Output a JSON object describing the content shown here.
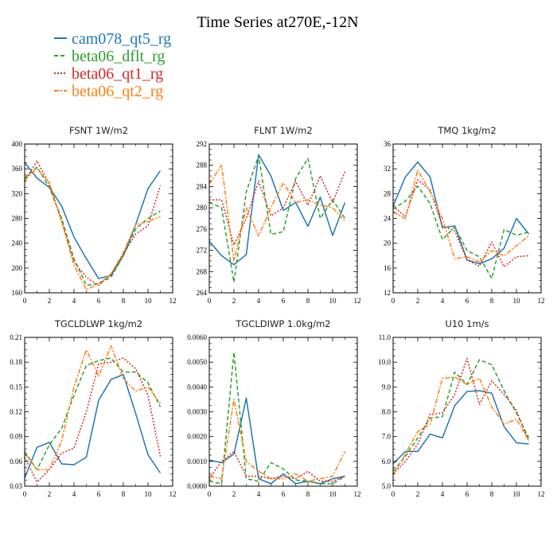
{
  "figure": {
    "title": "Time Series at270E,-12N",
    "legend": [
      {
        "name": "cam078_qt5_rg",
        "color": "#1f77b4"
      },
      {
        "name": "beta06_dflt_rg",
        "color": "#2ca02c"
      },
      {
        "name": "beta06_qt1_rg",
        "color": "#d62728"
      },
      {
        "name": "beta06_qt2_rg",
        "color": "#ff7f0e"
      }
    ]
  },
  "chart_data": [
    {
      "type": "line",
      "title": "FSNT   1W/m2",
      "x": [
        0,
        1,
        2,
        3,
        4,
        5,
        6,
        7,
        8,
        9,
        10,
        11
      ],
      "xlim": [
        0,
        12
      ],
      "xticks": [
        0,
        2,
        4,
        6,
        8,
        10,
        12
      ],
      "xticklabels": [
        "0",
        "2",
        "4",
        "6",
        "8",
        "10",
        "12"
      ],
      "ylim": [
        160,
        400
      ],
      "yticks": [
        160,
        200,
        240,
        280,
        320,
        360,
        400
      ],
      "yticklabels": [
        "160",
        "200",
        "240",
        "280",
        "320",
        "360",
        "400"
      ],
      "series": [
        {
          "name": "cam078_qt5_rg",
          "values": [
            370,
            345,
            330,
            300,
            250,
            215,
            183,
            188,
            220,
            270,
            328,
            357
          ]
        },
        {
          "name": "beta06_dflt_rg",
          "values": [
            345,
            363,
            330,
            280,
            215,
            172,
            175,
            185,
            220,
            263,
            280,
            292
          ]
        },
        {
          "name": "beta06_qt1_rg",
          "values": [
            340,
            373,
            335,
            275,
            210,
            185,
            172,
            190,
            222,
            255,
            268,
            333
          ]
        },
        {
          "name": "beta06_qt2_rg",
          "values": [
            342,
            360,
            338,
            275,
            205,
            165,
            175,
            190,
            225,
            270,
            275,
            283
          ]
        }
      ]
    },
    {
      "type": "line",
      "title": "FLNT   1W/m2",
      "x": [
        0,
        1,
        2,
        3,
        4,
        5,
        6,
        7,
        8,
        9,
        10,
        11
      ],
      "xlim": [
        0,
        12
      ],
      "xticks": [
        0,
        2,
        4,
        6,
        8,
        10,
        12
      ],
      "xticklabels": [
        "0",
        "2",
        "4",
        "6",
        "8",
        "10",
        "12"
      ],
      "ylim": [
        264,
        292
      ],
      "yticks": [
        264,
        268,
        272,
        276,
        280,
        284,
        288,
        292
      ],
      "yticklabels": [
        "264",
        "268",
        "272",
        "276",
        "280",
        "284",
        "288",
        "292"
      ],
      "series": [
        {
          "name": "cam078_qt5_rg",
          "values": [
            273.7,
            271,
            269.3,
            271.2,
            290,
            286,
            279.5,
            281,
            276.5,
            282,
            274.8,
            281
          ]
        },
        {
          "name": "beta06_dflt_rg",
          "values": [
            281,
            280,
            266,
            283,
            289.8,
            275,
            275.5,
            285.5,
            289.3,
            278,
            281.5,
            278
          ]
        },
        {
          "name": "beta06_qt1_rg",
          "values": [
            281.5,
            281.5,
            273,
            278,
            285,
            278.5,
            280,
            285,
            280.5,
            286,
            281,
            286.8
          ]
        },
        {
          "name": "beta06_qt2_rg",
          "values": [
            284.5,
            288,
            270,
            280,
            274.7,
            280,
            284.7,
            281,
            281.5,
            280.5,
            280,
            277.5
          ]
        }
      ]
    },
    {
      "type": "line",
      "title": "TMQ   1kg/m2",
      "x": [
        0,
        1,
        2,
        3,
        4,
        5,
        6,
        7,
        8,
        9,
        10,
        11
      ],
      "xlim": [
        0,
        12
      ],
      "xticks": [
        0,
        2,
        4,
        6,
        8,
        10,
        12
      ],
      "xticklabels": [
        "0",
        "2",
        "4",
        "6",
        "8",
        "10",
        "12"
      ],
      "ylim": [
        12,
        36
      ],
      "yticks": [
        12,
        16,
        20,
        24,
        28,
        32,
        36
      ],
      "yticklabels": [
        "12",
        "16",
        "20",
        "24",
        "28",
        "32",
        "36"
      ],
      "series": [
        {
          "name": "cam078_qt5_rg",
          "values": [
            26,
            30.7,
            33.1,
            30.7,
            22.5,
            22.8,
            17.3,
            16.7,
            17.5,
            19.2,
            24,
            21.5
          ]
        },
        {
          "name": "beta06_dflt_rg",
          "values": [
            25.5,
            26.8,
            29.2,
            26.4,
            20.6,
            22.6,
            18.8,
            17.8,
            14.3,
            22.2,
            21.3,
            21.8
          ]
        },
        {
          "name": "beta06_qt1_rg",
          "values": [
            26,
            24.3,
            30.2,
            28.6,
            22.8,
            22,
            17.3,
            16.3,
            20.2,
            16.2,
            17.8,
            18
          ]
        },
        {
          "name": "beta06_qt2_rg",
          "values": [
            25,
            24,
            31.8,
            28.3,
            24,
            17.5,
            17.8,
            17,
            18.8,
            18,
            19.6,
            21.2
          ]
        }
      ]
    },
    {
      "type": "line",
      "title": "TGCLDLWP   1kg/m2",
      "x": [
        0,
        1,
        2,
        3,
        4,
        5,
        6,
        7,
        8,
        9,
        10,
        11
      ],
      "xlim": [
        0,
        12
      ],
      "xticks": [
        0,
        2,
        4,
        6,
        8,
        10,
        12
      ],
      "xticklabels": [
        "0",
        "2",
        "4",
        "6",
        "8",
        "10",
        "12"
      ],
      "ylim": [
        0.03,
        0.21
      ],
      "yticks": [
        0.03,
        0.06,
        0.09,
        0.12,
        0.15,
        0.18,
        0.21
      ],
      "yticklabels": [
        "0.03",
        "0.06",
        "0.09",
        "0.12",
        "0.15",
        "0.18",
        "0.21"
      ],
      "series": [
        {
          "name": "cam078_qt5_rg",
          "values": [
            0.04,
            0.077,
            0.083,
            0.057,
            0.056,
            0.065,
            0.134,
            0.159,
            0.165,
            0.118,
            0.068,
            0.046
          ]
        },
        {
          "name": "beta06_dflt_rg",
          "values": [
            0.072,
            0.05,
            0.08,
            0.1,
            0.14,
            0.176,
            0.182,
            0.185,
            0.168,
            0.168,
            0.155,
            0.126
          ]
        },
        {
          "name": "beta06_qt1_rg",
          "values": [
            0.065,
            0.035,
            0.05,
            0.07,
            0.076,
            0.12,
            0.178,
            0.18,
            0.185,
            0.172,
            0.14,
            0.066
          ]
        },
        {
          "name": "beta06_qt2_rg",
          "values": [
            0.07,
            0.05,
            0.05,
            0.085,
            0.15,
            0.195,
            0.163,
            0.2,
            0.16,
            0.145,
            0.15,
            0.13
          ]
        }
      ]
    },
    {
      "type": "line",
      "title": "TGCLDIWP   1.0kg/m2",
      "x": [
        0,
        1,
        2,
        3,
        4,
        5,
        6,
        7,
        8,
        9,
        10,
        11
      ],
      "xlim": [
        0,
        12
      ],
      "xticks": [
        0,
        2,
        4,
        6,
        8,
        10,
        12
      ],
      "xticklabels": [
        "0",
        "2",
        "4",
        "6",
        "8",
        "10",
        "12"
      ],
      "ylim": [
        0,
        0.006
      ],
      "yticks": [
        0,
        0.001,
        0.002,
        0.003,
        0.004,
        0.005,
        0.006
      ],
      "yticklabels": [
        "0.0000",
        "0.0010",
        "0.0020",
        "0.0030",
        "0.0040",
        "0.0050",
        "0.0060"
      ],
      "series": [
        {
          "name": "cam078_qt5_rg",
          "values": [
            0.00105,
            0.00095,
            0.0013,
            0.00355,
            0.0003,
            0.0001,
            0.0005,
            0.0001,
            0.0002,
            0.0001,
            0.0003,
            0.0004
          ]
        },
        {
          "name": "beta06_dflt_rg",
          "values": [
            0.0002,
            0.0001,
            0.0054,
            0.0003,
            0.0002,
            0.00095,
            0.0007,
            0.00025,
            0.0002,
            0.0001,
            0.0001,
            0.0004
          ]
        },
        {
          "name": "beta06_qt1_rg",
          "values": [
            0.0003,
            0.001,
            0.0014,
            0.0004,
            0.0004,
            0.0003,
            0.0004,
            0.0003,
            0.0006,
            0.0002,
            0.0002,
            0.0004
          ]
        },
        {
          "name": "beta06_qt2_rg",
          "values": [
            0.0004,
            0.0003,
            0.0035,
            0.001,
            0.0006,
            0.0003,
            0.0003,
            0.0005,
            0.0002,
            0.0003,
            0.0004,
            0.0014
          ]
        }
      ]
    },
    {
      "type": "line",
      "title": "U10   1m/s",
      "x": [
        0,
        1,
        2,
        3,
        4,
        5,
        6,
        7,
        8,
        9,
        10,
        11
      ],
      "xlim": [
        0,
        12
      ],
      "xticks": [
        0,
        2,
        4,
        6,
        8,
        10,
        12
      ],
      "xticklabels": [
        "0",
        "2",
        "4",
        "6",
        "8",
        "10",
        "12"
      ],
      "ylim": [
        5,
        11
      ],
      "yticks": [
        5,
        6,
        7,
        8,
        9,
        10,
        11
      ],
      "yticklabels": [
        "5.0",
        "6.0",
        "7.0",
        "8.0",
        "9.0",
        "10.0",
        "11.0"
      ],
      "series": [
        {
          "name": "cam078_qt5_rg",
          "values": [
            5.9,
            6.4,
            6.4,
            7.1,
            6.95,
            8.25,
            8.82,
            8.85,
            8.75,
            7.4,
            6.75,
            6.7
          ]
        },
        {
          "name": "beta06_dflt_rg",
          "values": [
            5.6,
            6.2,
            6.95,
            7.75,
            7.8,
            9.6,
            9.1,
            10.1,
            9.9,
            8.85,
            7.95,
            6.95
          ]
        },
        {
          "name": "beta06_qt1_rg",
          "values": [
            5.5,
            6,
            6.7,
            7.9,
            7.95,
            8.7,
            10.15,
            8.3,
            9.25,
            8.7,
            8.05,
            6.8
          ]
        },
        {
          "name": "beta06_qt2_rg",
          "values": [
            5.45,
            6.3,
            7.2,
            7.5,
            9.35,
            9.4,
            9.1,
            9.35,
            8.2,
            7.5,
            7.7,
            6.85
          ]
        }
      ]
    }
  ]
}
